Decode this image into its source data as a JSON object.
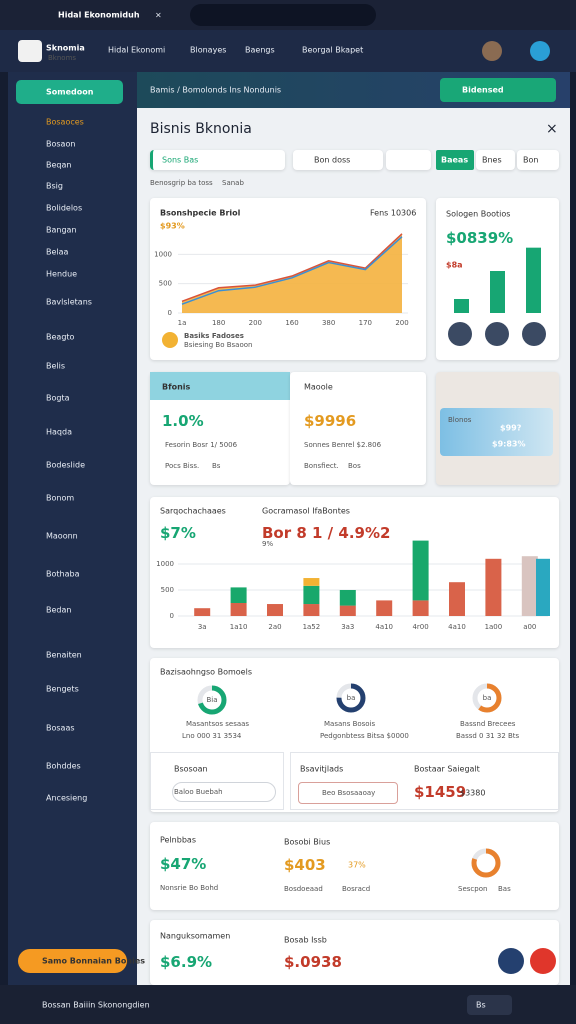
{
  "browser": {
    "tab": "Hidal Ekonomiduh",
    "close": "×"
  },
  "header": {
    "logo": "Sknomia",
    "logo_sub": "Bknoms",
    "nav": [
      "Hidal Ekonomi",
      "Blonayes",
      "Baengs",
      "Beorgal Bkapet"
    ]
  },
  "sidebar": {
    "button": "Somedoon",
    "items": [
      "Bosaoces",
      "Bosaon",
      "Beqan",
      "Bsig",
      "Bolidelos",
      "Bangan",
      "Belaa",
      "Hendue",
      "Bavlsletans",
      "Beagto",
      "Belis",
      "Bogta",
      "Haqda",
      "Bodeslide",
      "Bonom",
      "Maoonn",
      "Bothaba",
      "Bedan",
      "Benaiten",
      "Bengets",
      "Bosaas",
      "Bohddes",
      "Ancesieng"
    ],
    "cta": "Samo Bonnaian Bonies"
  },
  "strip": {
    "crumb": "Bamis / Bomolonds Ins Nondunis",
    "button": "Bidensed"
  },
  "page": {
    "title": "Bisnis Bknonia",
    "close": "×",
    "filter": "Sons Bas",
    "search": "Bon doss",
    "tabs": [
      "Baeas",
      "Bnes",
      "Bon"
    ],
    "breadcrumb": "Benosgrip ba toss",
    "breadcrumb_tag": "Sanab"
  },
  "area_chart": {
    "type": "area",
    "title": "Bsonshpecie Briol",
    "note": "Fens 10306",
    "value": "$93%",
    "categories": [
      "1a",
      "180",
      "200",
      "160",
      "380",
      "170",
      "200"
    ],
    "series": [
      {
        "color": "#f4b13e",
        "values": [
          200,
          430,
          475,
          630,
          890,
          765,
          1350
        ]
      },
      {
        "color": "#3a8fd6",
        "values": [
          150,
          380,
          440,
          600,
          860,
          740,
          1300
        ]
      }
    ],
    "ylim": [
      0,
      1500
    ],
    "yticks": [
      0,
      500,
      1000
    ],
    "grid": true,
    "footer": "Basiks Fadoses",
    "footer_sub": "Bsiesing Bo Bsaoon"
  },
  "side_card": {
    "title": "Sologen Bootios",
    "value": "$0839%",
    "sub": "$8a",
    "bars": [
      {
        "color": "#17a673",
        "value": 30
      },
      {
        "color": "#17a673",
        "value": 90
      },
      {
        "color": "#17a673",
        "value": 140
      }
    ],
    "ylim": [
      0,
      150
    ]
  },
  "row": [
    {
      "title": "Bfonis",
      "value": "1.0%",
      "line1": "Fesorin Bosr 1/ 5006",
      "line2": "Pocs Biss.",
      "tag": "Bs"
    },
    {
      "title": "Maoole",
      "value": "$9996",
      "line1": "Sonnes Benrel $2.806",
      "line2": "Bonsfiect.",
      "tag": "Bos"
    },
    {
      "title": "Blonos",
      "value": "$99?",
      "sub": "$9:83%"
    }
  ],
  "bar_chart": {
    "type": "bar",
    "title": "Sarqochachaaes",
    "value": "$7%",
    "title2": "Gocramasol IfaBontes",
    "value2": "Bor 8 1 / 4.9%2",
    "sub2": "9%",
    "categories": [
      "3a",
      "1a10",
      "2a0",
      "1a52",
      "3a3",
      "4a10",
      "4r00",
      "4a10",
      "1a00",
      "a00"
    ],
    "series": [
      {
        "color": "#d9634a",
        "values": [
          150,
          250,
          230,
          230,
          200,
          300,
          300,
          650,
          1100,
          0
        ]
      },
      {
        "color": "#18a86b",
        "values": [
          0,
          300,
          0,
          350,
          300,
          0,
          1150,
          0,
          0,
          0
        ]
      },
      {
        "color": "#f2b233",
        "values": [
          0,
          0,
          0,
          150,
          0,
          0,
          0,
          0,
          0,
          0
        ]
      },
      {
        "color": "#d9c4c0",
        "values": [
          0,
          0,
          0,
          0,
          0,
          0,
          0,
          0,
          0,
          1150
        ]
      },
      {
        "color": "#2aa8c0",
        "values": [
          0,
          0,
          0,
          0,
          0,
          0,
          0,
          0,
          0,
          0
        ]
      }
    ],
    "extra": {
      "color": "#2aa8c0",
      "value": 1100
    },
    "ylim": [
      0,
      1500
    ],
    "yticks": [
      0,
      500,
      1000
    ],
    "grid": true
  },
  "donut_card": {
    "title": "Bazisaohngso Bomoels",
    "donuts": [
      {
        "value": 70,
        "color": "#17a673",
        "center": "Bia",
        "label": "Masantsos sesaas",
        "sub": "Lno 000 31 3534"
      },
      {
        "value": 75,
        "color": "#24406f",
        "center": "ba",
        "label": "Masans Bosois",
        "sub": "Pedgonbtess Bitsa $0000"
      },
      {
        "value": 60,
        "color": "#e8812e",
        "center": "ba",
        "label": "Bassnd Brecees",
        "sub": "Bassd 0 31 32 Bts"
      }
    ],
    "left_title": "Bsosoan",
    "left_select": "Baloo Buebah",
    "mid_title": "Bsavitjlads",
    "mid_tag": "Beo Bsosaaoay",
    "right_title": "Bostaar Saiegalt",
    "right_value": "$1459",
    "right_sub": "$3380"
  },
  "card5": {
    "t1": "Pelnbbas",
    "v1": "$47%",
    "s1": "Nonsrie Bo Bohd",
    "t2": "Bosobi Bius",
    "v2": "$403",
    "v2b": "37%",
    "s2": "Bosdoeaad",
    "s2b": "Bosracd",
    "donut": {
      "value": 80,
      "color": "#e8812e"
    },
    "s3": "Sescpon",
    "s3b": "Bas"
  },
  "card6": {
    "t1": "Nanguksomamen",
    "v1": "$6.9%",
    "t2": "Bosab Issb",
    "v2": "$.0938"
  },
  "footer": {
    "text": "Bossan Baiiin Skonongdien",
    "badge": "Bs"
  }
}
